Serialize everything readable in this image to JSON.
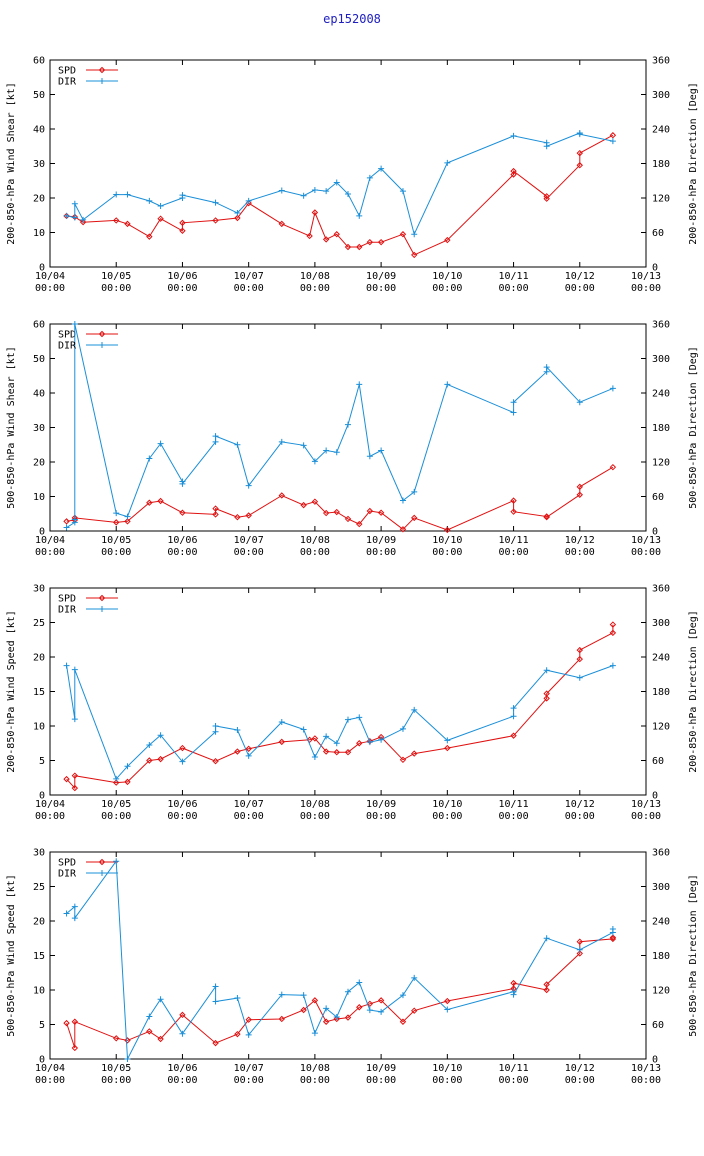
{
  "title": "ep152008",
  "colors": {
    "spd": "#e01010",
    "dir": "#1a8fd8",
    "axis": "#000000",
    "title": "#2020c0"
  },
  "x_ticks": [
    "10/04",
    "10/05",
    "10/06",
    "10/07",
    "10/08",
    "10/09",
    "10/10",
    "10/11",
    "10/12",
    "10/13"
  ],
  "x_tick_time": "00:00",
  "chart_data": [
    {
      "type": "line",
      "ylabel": "200-850-hPa Wind Shear [kt]",
      "y2label": "200-850-hPa Direction [Deg]",
      "ylim": [
        0,
        60
      ],
      "yticks": [
        0,
        10,
        20,
        30,
        40,
        50,
        60
      ],
      "y2lim": [
        0,
        360
      ],
      "y2ticks": [
        0,
        60,
        120,
        180,
        240,
        300,
        360
      ],
      "xlim": [
        0,
        9
      ],
      "legend": [
        "SPD",
        "DIR"
      ],
      "series": [
        {
          "name": "SPD",
          "axis": "left",
          "x": [
            0.25,
            0.375,
            0.5,
            1.0,
            1.17,
            1.5,
            1.67,
            2.0,
            2.0,
            2.5,
            2.83,
            3.0,
            3.5,
            3.92,
            4.0,
            4.17,
            4.33,
            4.5,
            4.67,
            4.83,
            5.0,
            5.33,
            5.5,
            6.0,
            7.0,
            7.0,
            7.5,
            7.5,
            8.0,
            8.0,
            8.5
          ],
          "y": [
            14.8,
            14.5,
            13.0,
            13.5,
            12.5,
            8.8,
            14.0,
            10.5,
            12.8,
            13.5,
            14.2,
            18.5,
            12.5,
            9.0,
            15.8,
            8.0,
            9.5,
            5.8,
            5.8,
            7.2,
            7.2,
            9.5,
            3.5,
            7.8,
            26.8,
            27.8,
            20.5,
            19.8,
            29.5,
            33.0,
            38.2
          ]
        },
        {
          "name": "DIR",
          "axis": "right",
          "x": [
            0.25,
            0.375,
            0.375,
            0.5,
            1.0,
            1.17,
            1.5,
            1.67,
            2.0,
            2.0,
            2.5,
            2.83,
            3.0,
            3.5,
            3.83,
            4.0,
            4.17,
            4.33,
            4.5,
            4.67,
            4.83,
            5.0,
            5.33,
            5.5,
            6.0,
            7.0,
            7.5,
            7.5,
            8.0,
            8.0,
            8.5
          ],
          "y": [
            89,
            86,
            110,
            82,
            126,
            126,
            115,
            106,
            120,
            125,
            112,
            94,
            115,
            133,
            124,
            134,
            132,
            147,
            127,
            89,
            155,
            171,
            132,
            57,
            181,
            228,
            216,
            210,
            233,
            231,
            219
          ]
        }
      ]
    },
    {
      "type": "line",
      "ylabel": "500-850-hPa Wind Shear [kt]",
      "y2label": "500-850-hPa Direction [Deg]",
      "ylim": [
        0,
        60
      ],
      "yticks": [
        0,
        10,
        20,
        30,
        40,
        50,
        60
      ],
      "y2lim": [
        0,
        360
      ],
      "y2ticks": [
        0,
        60,
        120,
        180,
        240,
        300,
        360
      ],
      "xlim": [
        0,
        9
      ],
      "legend": [
        "SPD",
        "DIR"
      ],
      "series": [
        {
          "name": "SPD",
          "axis": "left",
          "x": [
            0.25,
            0.375,
            0.375,
            1.0,
            1.17,
            1.5,
            1.67,
            2.0,
            2.5,
            2.5,
            2.83,
            3.0,
            3.5,
            3.83,
            4.0,
            4.17,
            4.33,
            4.5,
            4.67,
            4.83,
            5.0,
            5.33,
            5.5,
            6.0,
            7.0,
            7.0,
            7.5,
            7.5,
            8.0,
            8.0,
            8.5
          ],
          "y": [
            2.8,
            3.2,
            3.8,
            2.5,
            2.8,
            8.2,
            8.7,
            5.3,
            4.8,
            6.5,
            4.0,
            4.5,
            10.3,
            7.5,
            8.5,
            5.2,
            5.5,
            3.5,
            2.0,
            5.8,
            5.3,
            0.5,
            3.8,
            0.3,
            8.8,
            5.6,
            4.2,
            4.0,
            10.5,
            12.8,
            18.5
          ]
        },
        {
          "name": "DIR",
          "axis": "right",
          "x": [
            0.25,
            0.375,
            0.375,
            0.375,
            1.0,
            1.17,
            1.5,
            1.67,
            2.0,
            2.0,
            2.5,
            2.5,
            2.83,
            3.0,
            3.5,
            3.83,
            4.0,
            4.17,
            4.33,
            4.5,
            4.67,
            4.83,
            5.0,
            5.33,
            5.5,
            6.0,
            7.0,
            7.0,
            7.5,
            7.5,
            8.0,
            8.5
          ],
          "y": [
            6,
            15,
            20,
            360,
            31,
            25,
            126,
            152,
            86,
            82,
            155,
            165,
            150,
            79,
            155,
            149,
            121,
            140,
            137,
            185,
            255,
            130,
            140,
            53,
            68,
            255,
            206,
            224,
            277,
            285,
            224,
            248
          ]
        }
      ]
    },
    {
      "type": "line",
      "ylabel": "200-850-hPa Wind Speed [kt]",
      "y2label": "200-850-hPa Direction [Deg]",
      "ylim": [
        0,
        30
      ],
      "yticks": [
        0,
        5,
        10,
        15,
        20,
        25,
        30
      ],
      "y2lim": [
        0,
        360
      ],
      "y2ticks": [
        0,
        60,
        120,
        180,
        240,
        300,
        360
      ],
      "xlim": [
        0,
        9
      ],
      "legend": [
        "SPD",
        "DIR"
      ],
      "series": [
        {
          "name": "SPD",
          "axis": "left",
          "x": [
            0.25,
            0.375,
            0.375,
            1.0,
            1.17,
            1.5,
            1.67,
            2.0,
            2.5,
            2.83,
            3.0,
            3.5,
            3.92,
            4.0,
            4.17,
            4.33,
            4.5,
            4.67,
            4.83,
            5.0,
            5.33,
            5.5,
            6.0,
            7.0,
            7.5,
            7.5,
            8.0,
            8.0,
            8.5,
            8.5
          ],
          "y": [
            2.3,
            1.0,
            2.8,
            1.8,
            1.9,
            5.0,
            5.2,
            6.8,
            4.9,
            6.3,
            6.7,
            7.7,
            8.0,
            8.2,
            6.3,
            6.2,
            6.2,
            7.5,
            7.8,
            8.4,
            5.1,
            6.0,
            6.8,
            8.6,
            14.0,
            14.7,
            19.7,
            21.0,
            23.5,
            24.7
          ]
        },
        {
          "name": "DIR",
          "axis": "right",
          "x": [
            0.25,
            0.375,
            0.375,
            1.0,
            1.17,
            1.5,
            1.67,
            2.0,
            2.5,
            2.5,
            2.83,
            3.0,
            3.5,
            3.83,
            4.0,
            4.17,
            4.33,
            4.5,
            4.67,
            4.83,
            5.0,
            5.33,
            5.5,
            6.0,
            7.0,
            7.0,
            7.5,
            8.0,
            8.5
          ],
          "y": [
            225,
            132,
            218,
            28,
            50,
            87,
            104,
            58,
            110,
            120,
            113,
            68,
            127,
            114,
            66,
            102,
            90,
            131,
            135,
            92,
            96,
            115,
            148,
            95,
            137,
            151,
            217,
            204,
            225
          ]
        }
      ]
    },
    {
      "type": "line",
      "ylabel": "500-850-hPa Wind Speed [kt]",
      "y2label": "500-850-hPa Direction [Deg]",
      "ylim": [
        0,
        30
      ],
      "yticks": [
        0,
        5,
        10,
        15,
        20,
        25,
        30
      ],
      "y2lim": [
        0,
        360
      ],
      "y2ticks": [
        0,
        60,
        120,
        180,
        240,
        300,
        360
      ],
      "xlim": [
        0,
        9
      ],
      "legend": [
        "SPD",
        "DIR"
      ],
      "series": [
        {
          "name": "SPD",
          "axis": "left",
          "x": [
            0.25,
            0.375,
            0.375,
            1.0,
            1.17,
            1.5,
            1.67,
            2.0,
            2.5,
            2.83,
            3.0,
            3.5,
            3.83,
            4.0,
            4.17,
            4.33,
            4.5,
            4.67,
            4.83,
            5.0,
            5.33,
            5.5,
            6.0,
            7.0,
            7.0,
            7.5,
            7.5,
            8.0,
            8.0,
            8.5,
            8.5
          ],
          "y": [
            5.2,
            1.6,
            5.4,
            3.0,
            2.7,
            4.0,
            2.9,
            6.4,
            2.3,
            3.6,
            5.7,
            5.8,
            7.1,
            8.5,
            5.4,
            5.8,
            6.0,
            7.5,
            8.0,
            8.5,
            5.4,
            7.0,
            8.4,
            10.2,
            11.0,
            10.0,
            10.8,
            15.3,
            17.0,
            17.4,
            17.6
          ]
        },
        {
          "name": "DIR",
          "axis": "right",
          "x": [
            0.25,
            0.375,
            0.375,
            1.0,
            1.17,
            1.5,
            1.67,
            2.0,
            2.5,
            2.5,
            2.83,
            3.0,
            3.5,
            3.83,
            4.0,
            4.17,
            4.33,
            4.5,
            4.67,
            4.83,
            5.0,
            5.33,
            5.5,
            6.0,
            7.0,
            7.0,
            7.5,
            8.0,
            8.5,
            8.5
          ],
          "y": [
            253,
            265,
            245,
            344,
            0,
            74,
            104,
            44,
            126,
            100,
            106,
            42,
            112,
            111,
            45,
            88,
            73,
            117,
            133,
            85,
            82,
            111,
            141,
            86,
            117,
            112,
            210,
            190,
            220,
            226
          ]
        }
      ]
    }
  ]
}
